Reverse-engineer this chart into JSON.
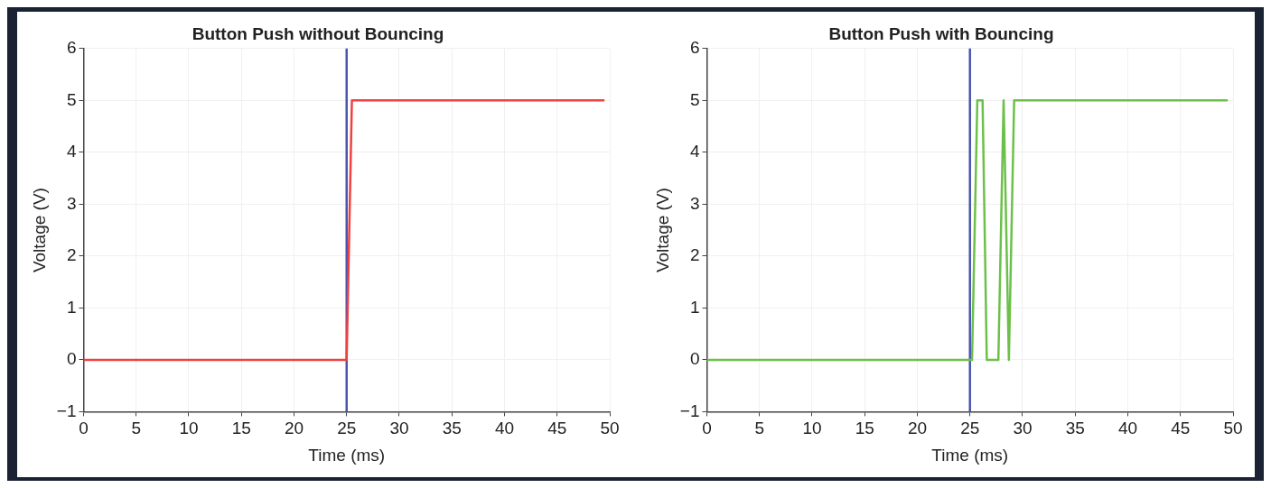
{
  "chart_data": [
    {
      "type": "line",
      "title": "Button Push without Bouncing",
      "xlabel": "Time (ms)",
      "ylabel": "Voltage (V)",
      "xlim": [
        0,
        50
      ],
      "ylim": [
        -1,
        6
      ],
      "xticks": [
        0,
        5,
        10,
        15,
        20,
        25,
        30,
        35,
        40,
        45,
        50
      ],
      "yticks": [
        {
          "value": -1,
          "label": "−1"
        },
        0,
        1,
        2,
        3,
        4,
        5,
        6
      ],
      "grid": true,
      "legend": false,
      "marker": "none",
      "line_style": "solid",
      "ref_lines": [
        {
          "axis": "x",
          "value": 25,
          "color": "#4a55b0"
        }
      ],
      "series": [
        {
          "color": "#f04040",
          "x": [
            0,
            25,
            25.5,
            49.5
          ],
          "values": [
            0,
            0,
            5,
            5
          ]
        }
      ]
    },
    {
      "type": "line",
      "title": "Button Push with Bouncing",
      "xlabel": "Time (ms)",
      "ylabel": "Voltage (V)",
      "xlim": [
        0,
        50
      ],
      "ylim": [
        -1,
        6
      ],
      "xticks": [
        0,
        5,
        10,
        15,
        20,
        25,
        30,
        35,
        40,
        45,
        50
      ],
      "yticks": [
        {
          "value": -1,
          "label": "−1"
        },
        0,
        1,
        2,
        3,
        4,
        5,
        6
      ],
      "grid": true,
      "legend": false,
      "marker": "none",
      "line_style": "solid",
      "ref_lines": [
        {
          "axis": "x",
          "value": 25,
          "color": "#4a55b0"
        }
      ],
      "series": [
        {
          "color": "#6cc04a",
          "x": [
            0,
            25.2,
            25.7,
            26.2,
            26.6,
            27.7,
            28.2,
            28.7,
            29.2,
            49.5
          ],
          "values": [
            0,
            0,
            5,
            5,
            0,
            0,
            5,
            0,
            5,
            5
          ]
        }
      ]
    }
  ]
}
